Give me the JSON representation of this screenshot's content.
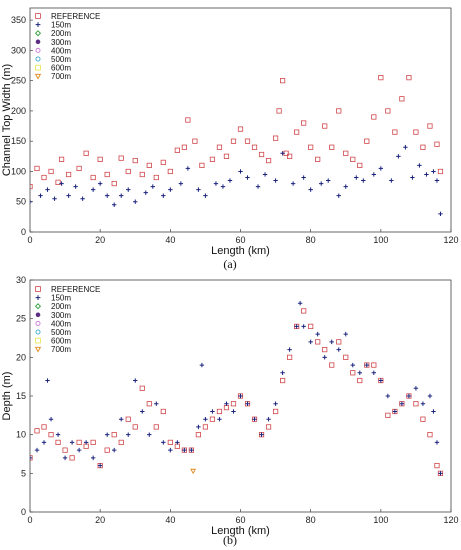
{
  "chart_data": [
    {
      "type": "scatter",
      "caption": "(a)",
      "xlabel": "Length (km)",
      "ylabel": "Channel Top Width (m)",
      "xlim": [
        0,
        120
      ],
      "ylim": [
        0,
        370
      ],
      "xticks": [
        0,
        20,
        40,
        60,
        80,
        100,
        120
      ],
      "yticks": [
        0,
        50,
        100,
        150,
        200,
        250,
        300,
        350
      ],
      "legend_position": "top-left",
      "series": [
        {
          "name": "REFERENCE",
          "marker": "square",
          "color": "#d0474a",
          "x": [
            0,
            2,
            4,
            6,
            8,
            9,
            11,
            14,
            16,
            18,
            20,
            22,
            24,
            26,
            28,
            30,
            32,
            34,
            36,
            38,
            40,
            42,
            44,
            45,
            47,
            49,
            52,
            54,
            56,
            58,
            60,
            62,
            64,
            66,
            68,
            70,
            71,
            72,
            73,
            74,
            76,
            78,
            80,
            82,
            84,
            86,
            88,
            90,
            92,
            94,
            96,
            98,
            100,
            102,
            104,
            106,
            108,
            110,
            112,
            114,
            116,
            117
          ],
          "y": [
            75,
            105,
            90,
            100,
            82,
            120,
            95,
            105,
            130,
            90,
            120,
            95,
            80,
            122,
            100,
            118,
            95,
            110,
            90,
            115,
            100,
            135,
            140,
            185,
            150,
            110,
            120,
            140,
            125,
            150,
            170,
            150,
            140,
            128,
            118,
            155,
            200,
            250,
            130,
            125,
            165,
            180,
            140,
            120,
            175,
            140,
            200,
            130,
            120,
            110,
            150,
            190,
            255,
            200,
            165,
            220,
            255,
            165,
            140,
            175,
            145,
            100
          ]
        },
        {
          "name": "150m",
          "marker": "plus",
          "color": "#1a237e",
          "x": [
            0,
            3,
            5,
            7,
            9,
            11,
            13,
            15,
            18,
            20,
            22,
            24,
            26,
            28,
            30,
            33,
            35,
            38,
            40,
            43,
            45,
            48,
            50,
            53,
            55,
            57,
            60,
            62,
            65,
            67,
            70,
            72,
            75,
            78,
            80,
            83,
            85,
            88,
            90,
            93,
            95,
            98,
            100,
            103,
            105,
            107,
            109,
            111,
            113,
            115,
            116,
            117
          ],
          "y": [
            50,
            60,
            70,
            55,
            80,
            60,
            75,
            55,
            70,
            80,
            60,
            45,
            60,
            70,
            50,
            65,
            75,
            60,
            70,
            80,
            105,
            70,
            60,
            80,
            75,
            85,
            100,
            90,
            75,
            95,
            85,
            130,
            80,
            90,
            70,
            80,
            85,
            60,
            75,
            90,
            85,
            95,
            105,
            85,
            125,
            140,
            90,
            110,
            95,
            100,
            85,
            30
          ]
        },
        {
          "name": "200m",
          "marker": "diamond",
          "color": "#2e9e3a"
        },
        {
          "name": "300m",
          "marker": "circle",
          "color": "#5b2c83"
        },
        {
          "name": "400m",
          "marker": "circle-open",
          "color": "#c874d8"
        },
        {
          "name": "500m",
          "marker": "circle-open",
          "color": "#3aa7c9"
        },
        {
          "name": "600m",
          "marker": "square",
          "color": "#e7e34a"
        },
        {
          "name": "700m",
          "marker": "triangle-down",
          "color": "#e08a1e"
        }
      ]
    },
    {
      "type": "scatter",
      "caption": "(b)",
      "xlabel": "Length (km)",
      "ylabel": "Depth (m)",
      "xlim": [
        0,
        120
      ],
      "ylim": [
        0,
        30
      ],
      "xticks": [
        0,
        20,
        40,
        60,
        80,
        100,
        120
      ],
      "yticks": [
        0,
        5,
        10,
        15,
        20,
        25,
        30
      ],
      "legend_position": "top-left",
      "series": [
        {
          "name": "REFERENCE",
          "marker": "square",
          "color": "#d0474a",
          "x": [
            0,
            2,
            4,
            6,
            8,
            10,
            12,
            14,
            16,
            18,
            20,
            22,
            24,
            26,
            28,
            30,
            32,
            34,
            36,
            38,
            40,
            42,
            44,
            46,
            48,
            50,
            52,
            54,
            56,
            58,
            60,
            62,
            64,
            66,
            68,
            70,
            72,
            74,
            76,
            78,
            80,
            82,
            84,
            86,
            88,
            90,
            92,
            94,
            96,
            98,
            100,
            102,
            104,
            106,
            108,
            110,
            112,
            114,
            116,
            117
          ],
          "y": [
            7,
            10.5,
            11,
            10,
            9,
            8,
            7,
            9,
            8.5,
            9,
            6,
            8,
            10,
            9,
            12,
            11,
            16,
            14,
            11,
            13,
            9,
            8.5,
            8,
            8,
            10,
            11,
            12,
            13,
            13.5,
            14,
            15,
            14,
            12,
            10,
            11,
            13,
            17,
            20,
            24,
            26,
            24,
            22,
            21,
            19,
            22,
            20,
            18,
            17,
            19,
            19,
            17,
            12.5,
            13,
            14,
            15,
            14,
            12,
            10,
            6,
            5
          ]
        },
        {
          "name": "150m",
          "marker": "plus",
          "color": "#1a237e",
          "x": [
            0,
            2,
            4,
            5,
            6,
            8,
            10,
            12,
            14,
            16,
            18,
            20,
            22,
            24,
            26,
            28,
            30,
            32,
            34,
            36,
            38,
            40,
            42,
            44,
            46,
            48,
            49,
            50,
            52,
            54,
            56,
            58,
            60,
            62,
            64,
            66,
            68,
            70,
            72,
            74,
            76,
            77,
            78,
            80,
            82,
            84,
            86,
            88,
            90,
            92,
            94,
            96,
            98,
            100,
            102,
            104,
            106,
            108,
            110,
            112,
            114,
            115,
            116,
            117
          ],
          "y": [
            7,
            8,
            9,
            17,
            12,
            10,
            7,
            9,
            8,
            9,
            7,
            6,
            10,
            8,
            12,
            10,
            17,
            13,
            10,
            14,
            9,
            8,
            9,
            8,
            8,
            11,
            19,
            12,
            13,
            12,
            14,
            13,
            15,
            14,
            12,
            10,
            12,
            14,
            18,
            21,
            24,
            27,
            24,
            22,
            23,
            20,
            22,
            21,
            23,
            19,
            18,
            19,
            18,
            17,
            15,
            13,
            14,
            15,
            16,
            14,
            15,
            13,
            9,
            5
          ]
        },
        {
          "name": "200m",
          "marker": "diamond",
          "color": "#2e9e3a"
        },
        {
          "name": "300m",
          "marker": "circle",
          "color": "#5b2c83"
        },
        {
          "name": "400m",
          "marker": "circle-open",
          "color": "#c874d8"
        },
        {
          "name": "500m",
          "marker": "circle-open",
          "color": "#3aa7c9"
        },
        {
          "name": "600m",
          "marker": "square",
          "color": "#e7e34a"
        },
        {
          "name": "700m",
          "marker": "triangle-down",
          "color": "#e08a1e",
          "x": [
            46.5
          ],
          "y": [
            5.3
          ]
        }
      ]
    }
  ]
}
